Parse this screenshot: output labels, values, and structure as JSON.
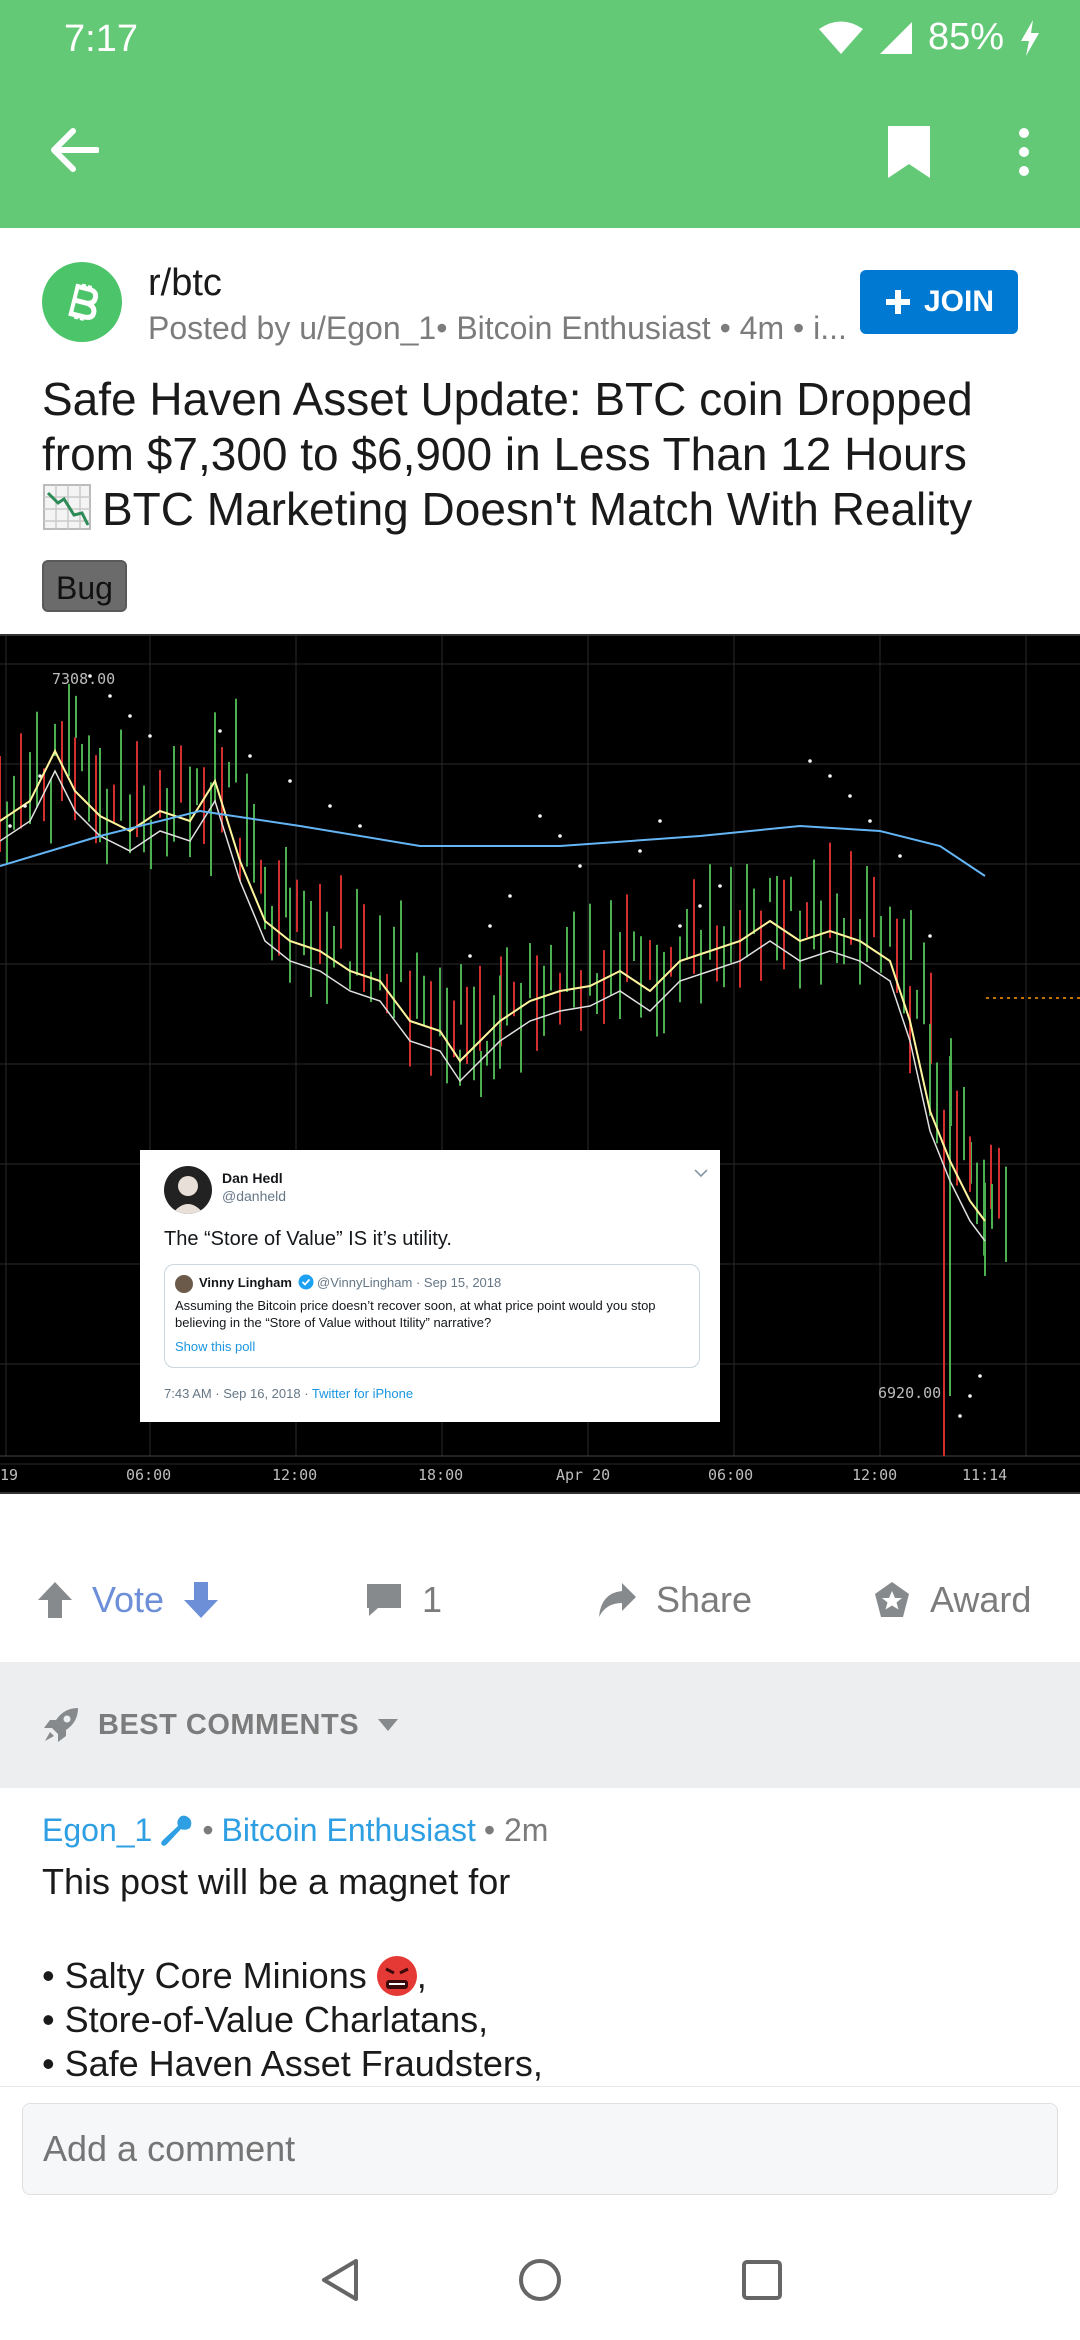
{
  "status": {
    "time": "7:17",
    "battery": "85%"
  },
  "post": {
    "subreddit": "r/btc",
    "posted_by": "Posted by u/Egon_1• Bitcoin Enthusiast • 4m • i...",
    "join_label": "JOIN",
    "title_line1": "Safe Haven Asset Update: BTC coin Dropped",
    "title_line2": "from $7,300 to $6,900 in Less Than 12 Hours",
    "title_line3": "BTC Marketing Doesn't Match With Reality",
    "flair": "Bug"
  },
  "chart_image": {
    "high_label": "7308.00",
    "low_label": "6920.00",
    "x_labels": [
      "19",
      "06:00",
      "12:00",
      "18:00",
      "Apr 20",
      "06:00",
      "12:00",
      "11:14"
    ]
  },
  "tweet": {
    "name": "Dan Hedl",
    "handle": "@danheld",
    "text": "The “Store of Value” IS it’s utility.",
    "quote_name": "Vinny Lingham",
    "quote_meta": "@VinnyLingham · Sep 15, 2018",
    "quote_body": "Assuming the Bitcoin price doesn’t recover soon, at what price point would you stop believing in the “Store of Value without Itility” narrative?",
    "quote_link": "Show this poll",
    "time": "7:43 AM · Sep 16, 2018 · ",
    "via": "Twitter for iPhone"
  },
  "actions": {
    "vote": "Vote",
    "comments": "1",
    "share": "Share",
    "award": "Award"
  },
  "sort": {
    "label": "BEST COMMENTS"
  },
  "comment": {
    "user": "Egon_1",
    "flair": "Bitcoin Enthusiast",
    "age": "• 2m",
    "line1": "This post will be a magnet for",
    "bullet1": "• Salty Core Minions ",
    "bullet1_end": ",",
    "bullet2": "• Store-of-Value Charlatans,",
    "bullet3": "• Safe Haven Asset Fraudsters,"
  },
  "composer": {
    "placeholder": "Add a comment"
  },
  "colors": {
    "app_bar": "#64c977",
    "join": "#0079d3",
    "link": "#2e9fe3",
    "vote": "#6d8fd8"
  }
}
